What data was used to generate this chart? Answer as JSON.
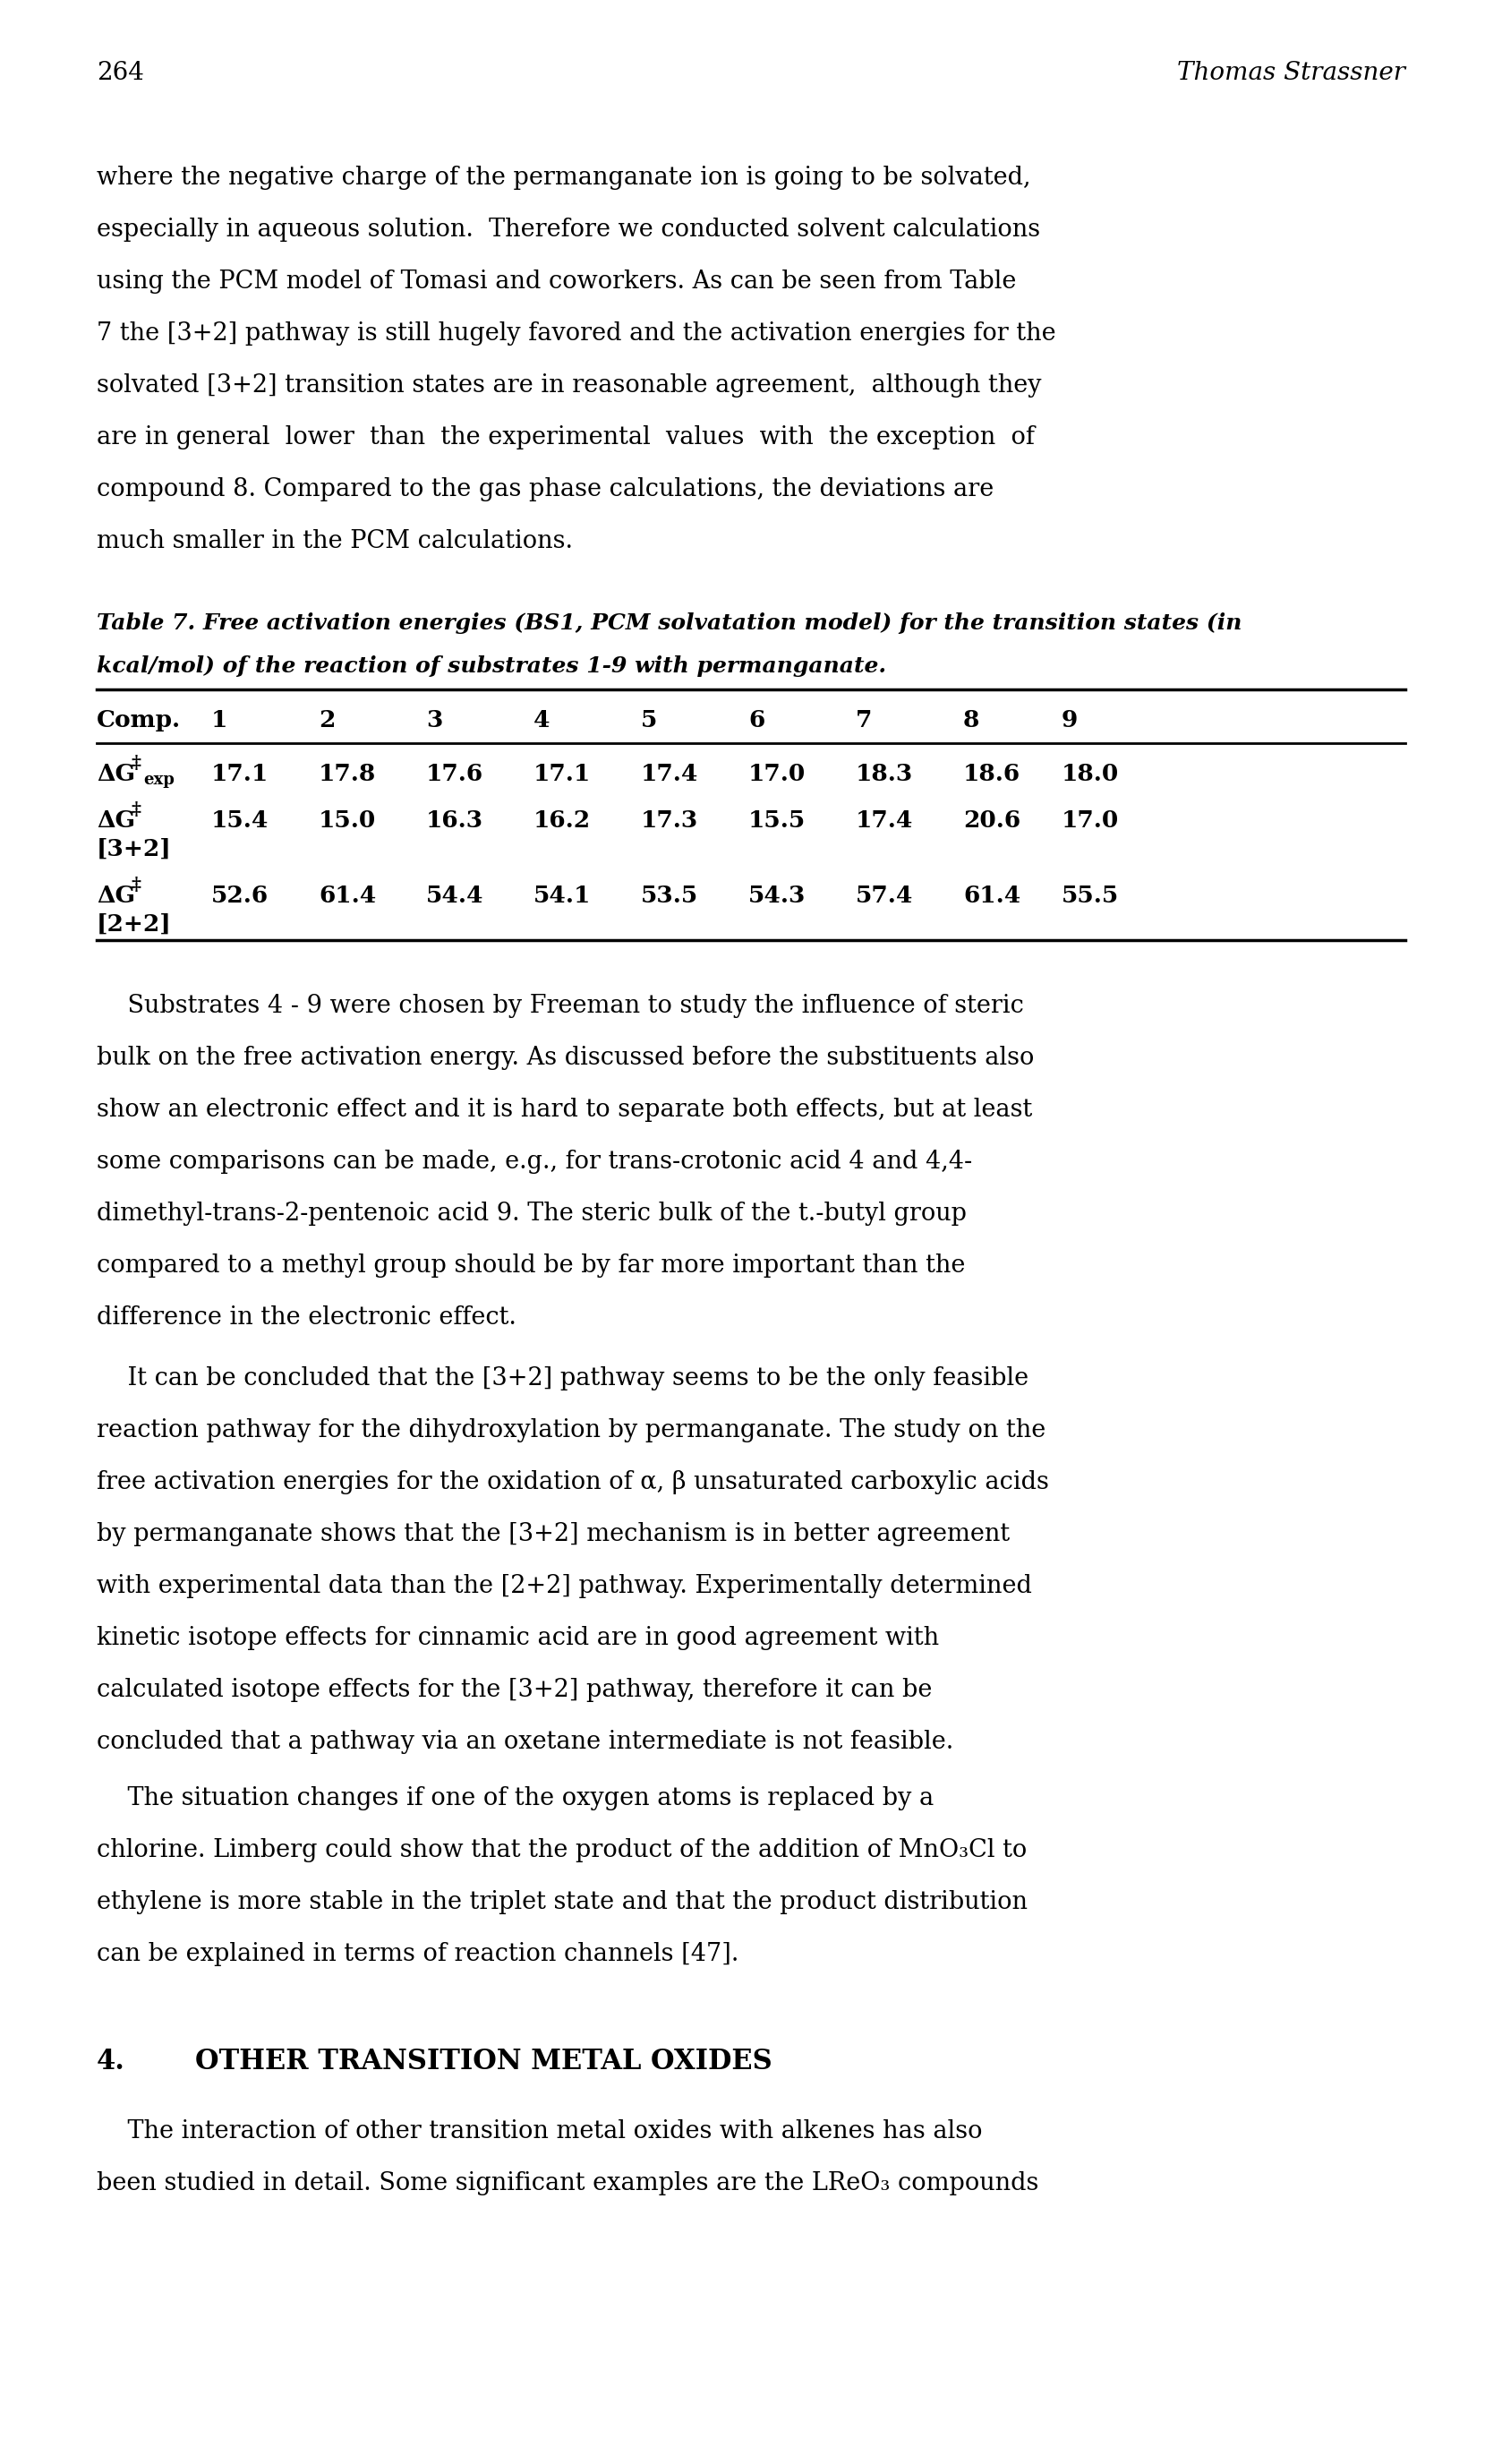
{
  "page_number": "264",
  "author": "Thomas Strassner",
  "para1_lines": [
    "where the negative charge of the permanganate ion is going to be solvated,",
    "especially in aqueous solution.  Therefore we conducted solvent calculations",
    "using the PCM model of Tomasi and coworkers. As can be seen from Table",
    "7 the [3+2] pathway is still hugely favored and the activation energies for the",
    "solvated [3+2] transition states are in reasonable agreement,  although they",
    "are in general  lower  than  the experimental  values  with  the exception  of",
    "compound 8. Compared to the gas phase calculations, the deviations are",
    "much smaller in the PCM calculations."
  ],
  "table_caption_bold_italic": "Table 7.",
  "table_caption_rest": " Free activation energies (BS1, PCM solvatation model) for the transition states (in\nkcal/mol) of the reaction of substrates 1-9 with permanganate.",
  "table_header": [
    "Comp.",
    "1",
    "2",
    "3",
    "4",
    "5",
    "6",
    "7",
    "8",
    "9"
  ],
  "table_row1_vals": [
    "17.1",
    "17.8",
    "17.6",
    "17.1",
    "17.4",
    "17.0",
    "18.3",
    "18.6",
    "18.0"
  ],
  "table_row2_vals": [
    "15.4",
    "15.0",
    "16.3",
    "16.2",
    "17.3",
    "15.5",
    "17.4",
    "20.6",
    "17.0"
  ],
  "table_row3_vals": [
    "52.6",
    "61.4",
    "54.4",
    "54.1",
    "53.5",
    "54.3",
    "57.4",
    "61.4",
    "55.5"
  ],
  "para2_lines": [
    "    Substrates 4 - 9 were chosen by Freeman to study the influence of steric",
    "bulk on the free activation energy. As discussed before the substituents also",
    "show an electronic effect and it is hard to separate both effects, but at least",
    "some comparisons can be made, e.g., for trans-crotonic acid 4 and 4,4-",
    "dimethyl-trans-2-pentenoic acid 9. The steric bulk of the t.-butyl group",
    "compared to a methyl group should be by far more important than the",
    "difference in the electronic effect."
  ],
  "para3_lines": [
    "    It can be concluded that the [3+2] pathway seems to be the only feasible",
    "reaction pathway for the dihydroxylation by permanganate. The study on the",
    "free activation energies for the oxidation of α, β unsaturated carboxylic acids",
    "by permanganate shows that the [3+2] mechanism is in better agreement",
    "with experimental data than the [2+2] pathway. Experimentally determined",
    "kinetic isotope effects for cinnamic acid are in good agreement with",
    "calculated isotope effects for the [3+2] pathway, therefore it can be",
    "concluded that a pathway via an oxetane intermediate is not feasible."
  ],
  "para4_lines": [
    "    The situation changes if one of the oxygen atoms is replaced by a",
    "chlorine. Limberg could show that the product of the addition of MnO₃Cl to",
    "ethylene is more stable in the triplet state and that the product distribution",
    "can be explained in terms of reaction channels [47]."
  ],
  "section_num": "4.",
  "section_title": "OTHER TRANSITION METAL OXIDES",
  "para5_lines": [
    "    The interaction of other transition metal oxides with alkenes has also",
    "been studied in detail. Some significant examples are the LReO₃ compounds"
  ],
  "background_color": "#ffffff",
  "text_color": "#000000"
}
